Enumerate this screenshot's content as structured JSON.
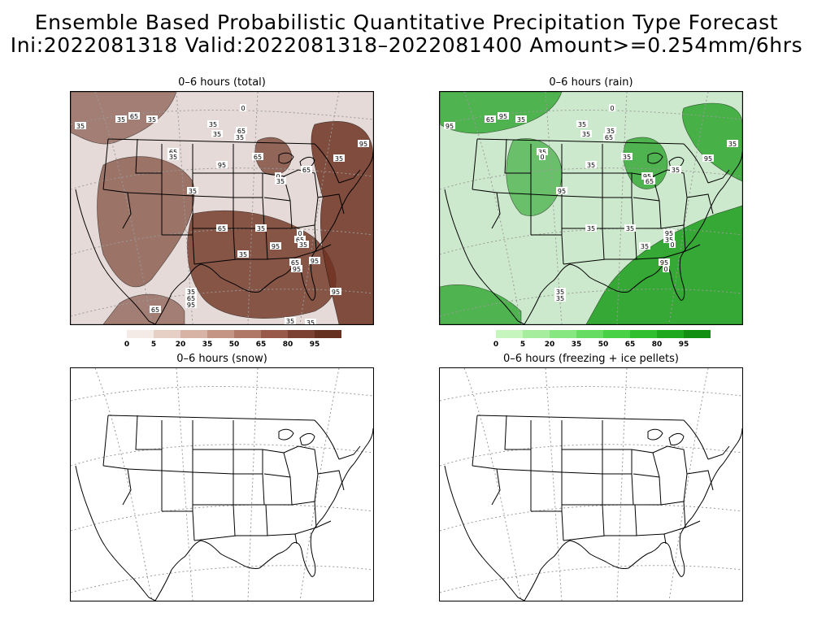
{
  "figure": {
    "title_line1": "Ensemble Based Probabilistic Quantitative Precipitation Type Forecast",
    "title_line2": "Ini:2022081318 Valid:2022081318–2022081400 Amount>=0.254mm/6hrs"
  },
  "panels": [
    {
      "title": "0–6 hours (total)",
      "colorbar": {
        "labels": [
          "0",
          "5",
          "20",
          "35",
          "50",
          "65",
          "80",
          "95"
        ],
        "colors": [
          "#f5ebe6",
          "#e6cfc4",
          "#d6b3a4",
          "#c49585",
          "#b07866",
          "#98594a",
          "#7d4133",
          "#663020"
        ]
      },
      "contour_labels": [
        "35",
        "35",
        "65",
        "35",
        "35",
        "0",
        "35",
        "65",
        "35",
        "65",
        "35",
        "95",
        "65",
        "0",
        "35",
        "65",
        "35",
        "95",
        "35",
        "65",
        "35",
        "0",
        "95",
        "65",
        "35",
        "65",
        "95",
        "35",
        "65",
        "95",
        "65",
        "35",
        "95",
        "95",
        "35",
        "35"
      ]
    },
    {
      "title": "0–6 hours (rain)",
      "colorbar": {
        "labels": [
          "0",
          "5",
          "20",
          "35",
          "50",
          "65",
          "80",
          "95"
        ],
        "colors": [
          "#c6f5be",
          "#a6ee9e",
          "#86e680",
          "#66dc62",
          "#48d046",
          "#2fbf2f",
          "#1ea81e",
          "#108f10"
        ]
      },
      "contour_labels": [
        "95",
        "65",
        "95",
        "35",
        "35",
        "0",
        "35",
        "35",
        "65",
        "35",
        "0",
        "35",
        "35",
        "95",
        "65",
        "35",
        "95",
        "35",
        "95",
        "35",
        "35",
        "95",
        "35",
        "35",
        "0",
        "95",
        "0",
        "35",
        "35"
      ]
    },
    {
      "title": "0–6 hours (snow)"
    },
    {
      "title": "0–6 hours (freezing + ice pellets)"
    }
  ],
  "colors": {
    "total_shade": "#6e3322",
    "rain_shade": "#1a9c1a",
    "contour_line": "#000000",
    "grid_line": "#9a9a9a"
  }
}
